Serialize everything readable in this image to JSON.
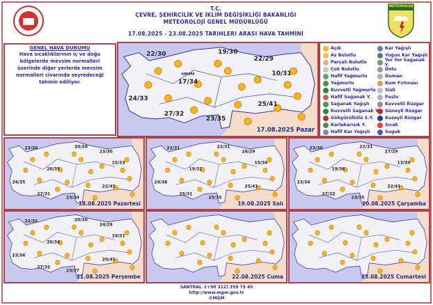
{
  "header": {
    "line1": "T.C.",
    "line2": "ÇEVRE, ŞEHİRCİLİK VE İKLİM DEĞİŞİKLİĞİ BAKANLIĞI",
    "line3": "METEOROLOJİ  GENEL  MÜDÜRLÜĞÜ",
    "line4": "17.08.2025  -  23.08.2025   TARIHLERI  ARASI  HAVA  TAHMİNİ",
    "logo_right_text": "METEOROLOJİ"
  },
  "general": {
    "title": "GENEL HAVA DURUMU",
    "text": "Hava sıcaklıklarının iç ve doğu bölgelerde mevsim normalleri üzerinde diğer yerlerde mevsim normalleri civarında seyredeceği tahmin ediliyor."
  },
  "legend": [
    {
      "label": "Açık",
      "icon": "sun",
      "color": "#f5b81c"
    },
    {
      "label": "Az Bulutlu",
      "icon": "sun-cloud",
      "color": "#f0c050"
    },
    {
      "label": "Parçalı Bulutlu",
      "icon": "partly-cloudy",
      "color": "#e0b0a0"
    },
    {
      "label": "Çok Bulutlu",
      "icon": "cloudy",
      "color": "#c8c8c8"
    },
    {
      "label": "Hafif Yağmurlu",
      "icon": "light-rain",
      "color": "#6aa36a"
    },
    {
      "label": "Yağmurlu",
      "icon": "rain",
      "color": "#4a944a"
    },
    {
      "label": "Kuvvetli Yağmurlu",
      "icon": "heavy-rain",
      "color": "#2f8a2f"
    },
    {
      "label": "Hafif Sağanak Y.",
      "icon": "light-shower",
      "color": "#c06060"
    },
    {
      "label": "Sağanak Yağışlı",
      "icon": "shower",
      "color": "#4a9a4a"
    },
    {
      "label": "Kuvvetli Sağanak Y",
      "icon": "heavy-shower",
      "color": "#2f8a2f"
    },
    {
      "label": "Gökgürültülü S.Y.",
      "icon": "thunderstorm",
      "color": "#c03030"
    },
    {
      "label": "Karlakarışık Y.",
      "icon": "sleet",
      "color": "#5a8a5a"
    },
    {
      "label": "Hafif Kar Yağışlı",
      "icon": "light-snow",
      "color": "#8090a0"
    },
    {
      "label": "Kar Yağışlı",
      "icon": "snow",
      "color": "#7080a0"
    },
    {
      "label": "Yoğun Kar Yağışlı",
      "icon": "heavy-snow",
      "color": "#607090"
    },
    {
      "label": "Yer Yer Sağanak Y.",
      "icon": "scattered-shower",
      "color": "#70a070"
    },
    {
      "label": "Dolu",
      "icon": "hail",
      "color": "#90a090"
    },
    {
      "label": "Duman",
      "icon": "smoke",
      "color": "#b0b0b0"
    },
    {
      "label": "Kum Fırtınası",
      "icon": "sandstorm",
      "color": "#d0a070"
    },
    {
      "label": "Sisli",
      "icon": "fog",
      "color": "#c0c0c0"
    },
    {
      "label": "Puslu",
      "icon": "haze",
      "color": "#b0b0c0"
    },
    {
      "label": "Kuvvetli Rüzgar",
      "icon": "strong-wind",
      "color": "#909090"
    },
    {
      "label": "Güneyli Rüzgar",
      "icon": "south-wind-arrow",
      "color": "#d02020"
    },
    {
      "label": "Kuzeyli Rüzgar",
      "icon": "north-wind-arrow",
      "color": "#1a3a9a"
    },
    {
      "label": "Sıcak",
      "icon": "hot-thermometer",
      "color": "#e04040"
    },
    {
      "label": "Soguk",
      "icon": "cold-thermometer",
      "color": "#4060c0"
    }
  ],
  "maps": [
    {
      "date": "17.08.2025 Pazar",
      "city_label": "ANKARA",
      "temps": [
        "22/30",
        "19/30",
        "22/29",
        "10/31",
        "17/34",
        "24/33",
        "27/32",
        "23/35",
        "25/41"
      ]
    },
    {
      "date": "18.08.2025 Pazartesi",
      "temps": [
        "23/30",
        "20/30",
        "23/30",
        "15/33",
        "20/35",
        "24/35",
        "27/31",
        "23/34",
        "22/41"
      ]
    },
    {
      "date": "19.08.2025 Salı",
      "temps": [
        "22/31",
        "22/31",
        "26/29",
        "15/34",
        "19/32",
        "24/36",
        "25/31",
        "25/35",
        "25/41"
      ]
    },
    {
      "date": "20.08.2025 Çarşamba",
      "temps": [
        "23/30",
        "22/31",
        "27/29",
        "13/34",
        "19/36",
        "23/34",
        "27/32",
        "23/35",
        "22/41"
      ]
    },
    {
      "date": "21.08.2025 Perşembe",
      "temps": [
        "22/32",
        "20/30",
        "24/29",
        "10/31",
        "20/34",
        "23/36",
        "27/32",
        "23/37",
        "25/41"
      ]
    },
    {
      "date": "22.08.2025 Cuma",
      "temps": []
    },
    {
      "date": "23.08.2025 Cumartesi",
      "temps": []
    }
  ],
  "colors": {
    "sea": "#c9c9ef",
    "land": "#f2f2f6",
    "neighbor": "#f6dccb",
    "border": "#b0404a",
    "text": "#1f2f8f"
  },
  "footer": {
    "phone": "SANTRAL :(+90 312) 359 75 45",
    "url": "http://www.mgm.gov.tr",
    "copyright": "©MGM"
  }
}
